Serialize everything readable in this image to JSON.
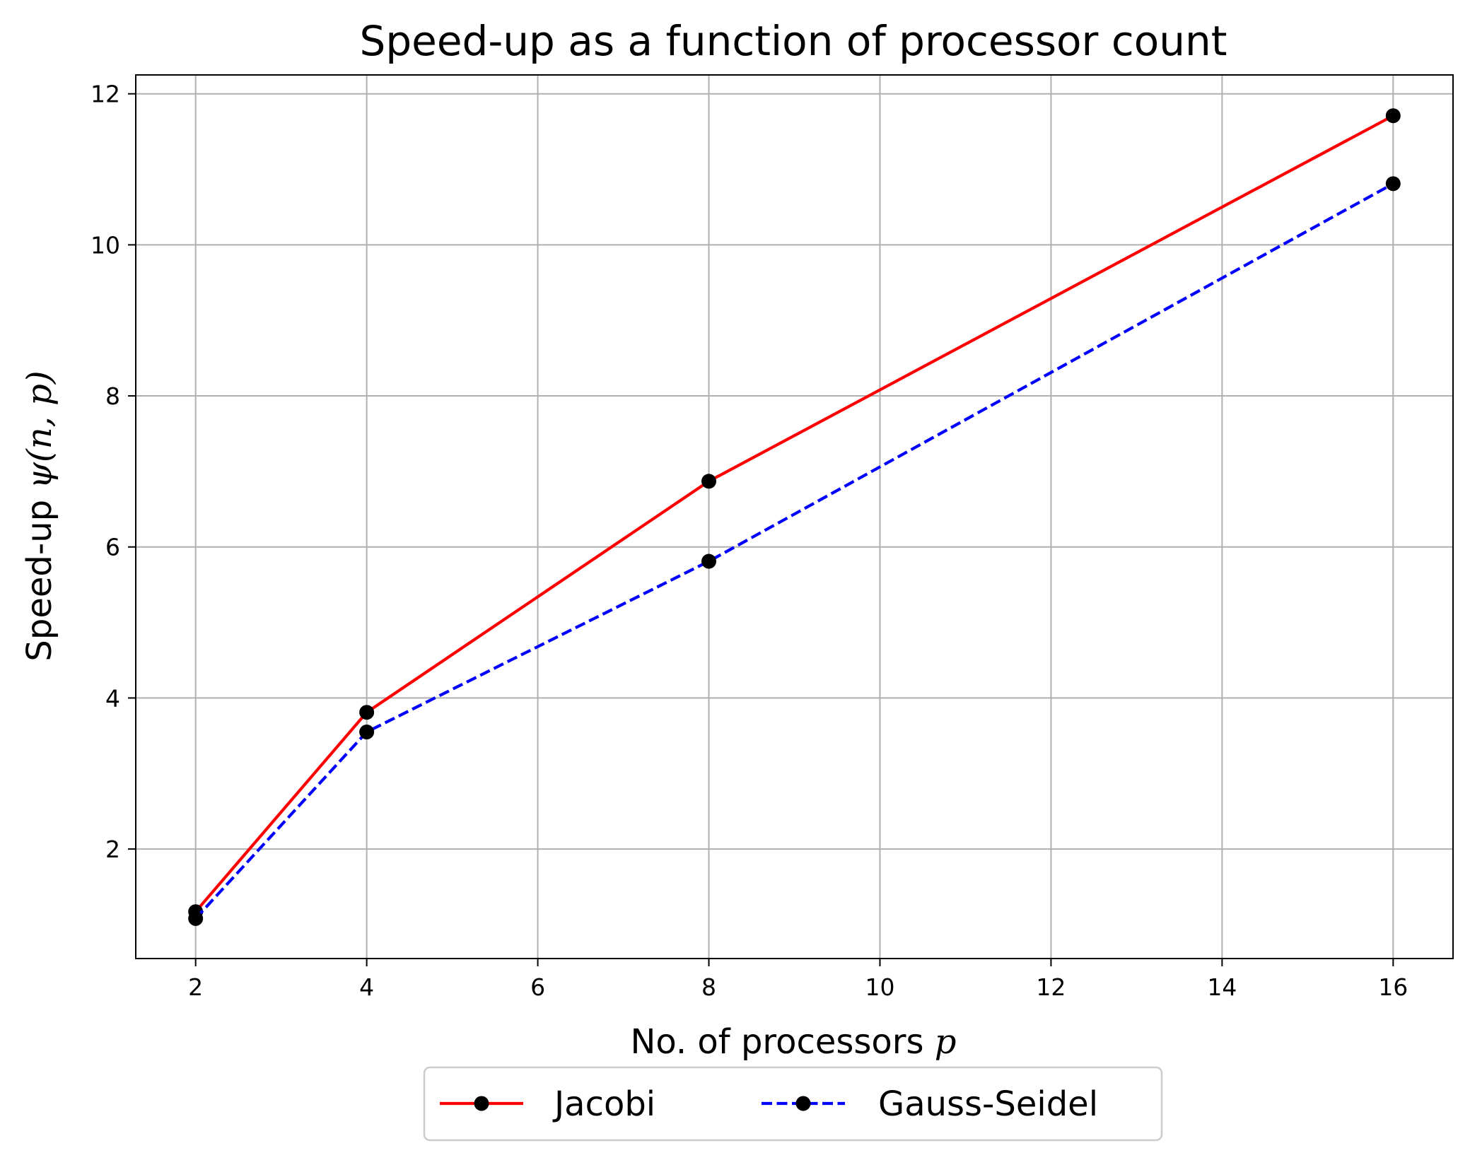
{
  "chart_data": {
    "type": "line",
    "title": "Speed-up as a function of processor count",
    "xlabel": {
      "text": "No. of processors ",
      "math": "p"
    },
    "ylabel": {
      "text": "Speed-up ",
      "math": "ψ(n, p)"
    },
    "x": [
      2,
      4,
      8,
      16
    ],
    "series": [
      {
        "name": "Jacobi",
        "values": [
          1.17,
          3.81,
          6.87,
          11.71
        ],
        "color": "#ff0000",
        "line_style": "solid",
        "marker": "circle",
        "marker_color": "#000000"
      },
      {
        "name": "Gauss-Seidel",
        "values": [
          1.08,
          3.55,
          5.81,
          10.81
        ],
        "color": "#0000ff",
        "line_style": "dashed",
        "marker": "circle",
        "marker_color": "#000000"
      }
    ],
    "xlim": [
      1.3,
      16.7
    ],
    "ylim": [
      0.55,
      12.25
    ],
    "xticks": [
      2,
      4,
      6,
      8,
      10,
      12,
      14,
      16
    ],
    "yticks": [
      2,
      4,
      6,
      8,
      10,
      12
    ],
    "grid": true,
    "grid_color": "#b0b0b0",
    "legend_position": "bottom-center"
  }
}
